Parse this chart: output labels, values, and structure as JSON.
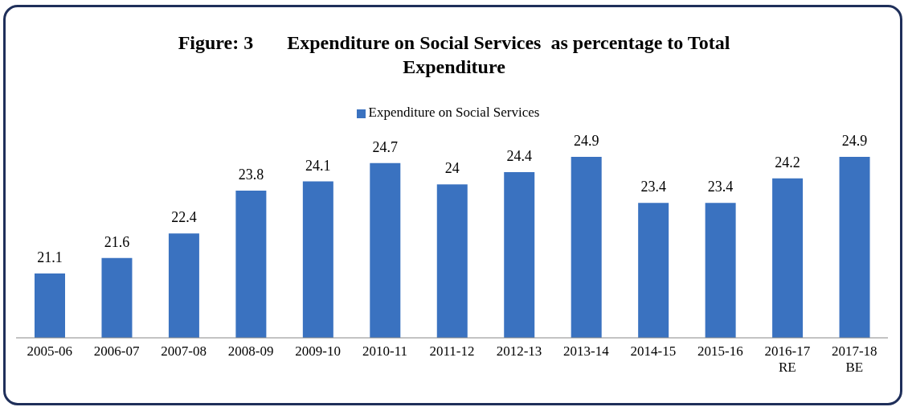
{
  "chart_data": {
    "type": "bar",
    "title": "Figure: 3       Expenditure on Social Services  as percentage to Total Expenditure",
    "categories": [
      "2005-06",
      "2006-07",
      "2007-08",
      "2008-09",
      "2009-10",
      "2010-11",
      "2011-12",
      "2012-13",
      "2013-14",
      "2014-15",
      "2015-16",
      "2016-17\nRE",
      "2017-18\nBE"
    ],
    "series": [
      {
        "name": "Expenditure on Social Services",
        "color": "#3a72c0",
        "values": [
          21.1,
          21.6,
          22.4,
          23.8,
          24.1,
          24.7,
          24,
          24.4,
          24.9,
          23.4,
          23.4,
          24.2,
          24.9
        ]
      }
    ],
    "ylim": [
      19,
      24.9
    ],
    "data_labels": true,
    "legend": "top",
    "grid": false
  }
}
